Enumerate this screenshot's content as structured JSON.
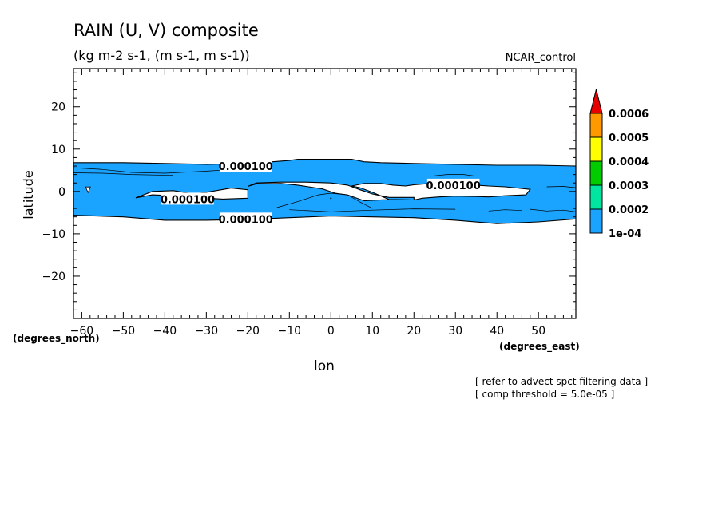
{
  "chart_data": {
    "type": "contour",
    "title": "RAIN (U, V) composite",
    "subtitle": "(kg m-2 s-1, (m s-1, m s-1))",
    "run_label": "NCAR_control",
    "xlabel": "lon",
    "ylabel": "latitude",
    "x_unit_label": "(degrees_east)",
    "y_unit_label": "(degrees_north)",
    "xlim": [
      -62,
      59
    ],
    "ylim": [
      -30,
      29
    ],
    "x_ticks": [
      -60,
      -50,
      -40,
      -30,
      -20,
      -10,
      0,
      10,
      20,
      30,
      40,
      50
    ],
    "y_ticks": [
      -20,
      -10,
      0,
      10,
      20
    ],
    "contour_labels": [
      {
        "text": "0.000100",
        "lon": -20.5,
        "lat": 6.0
      },
      {
        "text": "0.000100",
        "lon": -34.5,
        "lat": -1.8
      },
      {
        "text": "0.000100",
        "lon": -20.5,
        "lat": -6.5
      },
      {
        "text": "0.000100",
        "lon": 29.5,
        "lat": 1.5
      }
    ],
    "colorbar": {
      "levels": [
        "1e-04",
        "0.0002",
        "0.0003",
        "0.0004",
        "0.0005",
        "0.0006"
      ],
      "colors": [
        "#1aa3ff",
        "#00e6a0",
        "#00cc00",
        "#ffff00",
        "#ff9900",
        "#e60000"
      ]
    },
    "fill_color": "#1aa3ff",
    "band": {
      "north_edge": [
        [
          -62,
          6.8
        ],
        [
          -50,
          6.8
        ],
        [
          -40,
          6.6
        ],
        [
          -30,
          6.4
        ],
        [
          -20,
          6.6
        ],
        [
          -14,
          7.0
        ],
        [
          -10,
          7.3
        ],
        [
          -8,
          7.6
        ],
        [
          0,
          7.6
        ],
        [
          5,
          7.6
        ],
        [
          8,
          7.0
        ],
        [
          12,
          6.8
        ],
        [
          20,
          6.6
        ],
        [
          30,
          6.4
        ],
        [
          40,
          6.2
        ],
        [
          50,
          6.2
        ],
        [
          59,
          6.0
        ]
      ],
      "south_edge": [
        [
          -62,
          -5.6
        ],
        [
          -50,
          -6.0
        ],
        [
          -40,
          -6.8
        ],
        [
          -30,
          -6.8
        ],
        [
          -20,
          -6.6
        ],
        [
          -10,
          -6.2
        ],
        [
          0,
          -5.8
        ],
        [
          10,
          -6.0
        ],
        [
          20,
          -6.2
        ],
        [
          30,
          -6.8
        ],
        [
          40,
          -7.6
        ],
        [
          50,
          -7.2
        ],
        [
          59,
          -6.5
        ]
      ],
      "holes": [
        [
          [
            -47,
            -1.5
          ],
          [
            -43,
            0.0
          ],
          [
            -38,
            0.2
          ],
          [
            -33,
            -0.6
          ],
          [
            -30,
            -0.2
          ],
          [
            -24,
            0.8
          ],
          [
            -20,
            0.4
          ],
          [
            -20,
            -1.6
          ],
          [
            -26,
            -1.8
          ],
          [
            -33,
            -1.4
          ],
          [
            -38,
            -1.0
          ],
          [
            -43,
            -0.8
          ]
        ],
        [
          [
            -20,
            1.2
          ],
          [
            -18,
            1.8
          ],
          [
            -12,
            1.9
          ],
          [
            -8,
            1.5
          ],
          [
            -6,
            1.2
          ],
          [
            -2,
            0.6
          ],
          [
            1,
            -0.4
          ],
          [
            4,
            -0.8
          ],
          [
            8,
            -2.2
          ],
          [
            14,
            -1.9
          ],
          [
            20,
            -2.0
          ],
          [
            20,
            -1.4
          ],
          [
            14,
            -1.4
          ],
          [
            10,
            -0.6
          ],
          [
            7,
            0.4
          ],
          [
            4,
            1.5
          ],
          [
            0,
            2.0
          ],
          [
            -6,
            2.2
          ],
          [
            -12,
            2.2
          ],
          [
            -18,
            2.0
          ]
        ],
        [
          [
            5,
            1.3
          ],
          [
            8,
            1.9
          ],
          [
            12,
            1.9
          ],
          [
            15,
            1.5
          ],
          [
            18,
            1.3
          ],
          [
            20,
            1.6
          ],
          [
            24,
            1.9
          ],
          [
            28,
            1.7
          ],
          [
            32,
            1.5
          ],
          [
            35,
            1.5
          ],
          [
            38,
            1.3
          ],
          [
            42,
            1.1
          ],
          [
            48,
            0.5
          ],
          [
            47,
            -0.8
          ],
          [
            42,
            -1.0
          ],
          [
            38,
            -1.3
          ],
          [
            35,
            -1.2
          ],
          [
            30,
            -1.1
          ],
          [
            26,
            -1.3
          ],
          [
            22,
            -1.6
          ],
          [
            20,
            -2.0
          ],
          [
            14,
            -1.9
          ],
          [
            10,
            -0.2
          ],
          [
            7,
            0.9
          ]
        ]
      ],
      "contours": [
        [
          [
            -62,
            5.6
          ],
          [
            -55,
            5.2
          ],
          [
            -48,
            4.5
          ],
          [
            -40,
            4.3
          ],
          [
            -30,
            4.8
          ],
          [
            -25,
            5.1
          ]
        ],
        [
          [
            -62,
            4.4
          ],
          [
            -55,
            4.3
          ],
          [
            -48,
            4.0
          ],
          [
            -38,
            3.8
          ]
        ],
        [
          [
            -13,
            -3.8
          ],
          [
            -8,
            -2.4
          ],
          [
            -3,
            -0.8
          ],
          [
            0,
            -0.4
          ],
          [
            4,
            -0.8
          ],
          [
            7,
            -2.5
          ],
          [
            10,
            -4.0
          ]
        ],
        [
          [
            -10,
            -4.3
          ],
          [
            0,
            -4.8
          ],
          [
            10,
            -4.4
          ],
          [
            20,
            -4.1
          ],
          [
            30,
            -4.2
          ]
        ],
        [
          [
            24,
            3.6
          ],
          [
            28,
            4.0
          ],
          [
            32,
            4.0
          ],
          [
            35,
            3.6
          ]
        ],
        [
          [
            48,
            -4.2
          ],
          [
            52,
            -4.6
          ],
          [
            56,
            -4.4
          ],
          [
            59,
            -4.8
          ]
        ],
        [
          [
            38,
            -4.6
          ],
          [
            42,
            -4.3
          ],
          [
            46,
            -4.5
          ]
        ],
        [
          [
            52,
            1.1
          ],
          [
            56,
            1.2
          ],
          [
            59,
            0.9
          ]
        ]
      ],
      "marker": {
        "lon": -58.5,
        "lat": 0.5
      }
    }
  },
  "notes": [
    "[ refer to advect spct filtering data ]",
    "[ comp threshold = 5.0e-05 ]"
  ]
}
